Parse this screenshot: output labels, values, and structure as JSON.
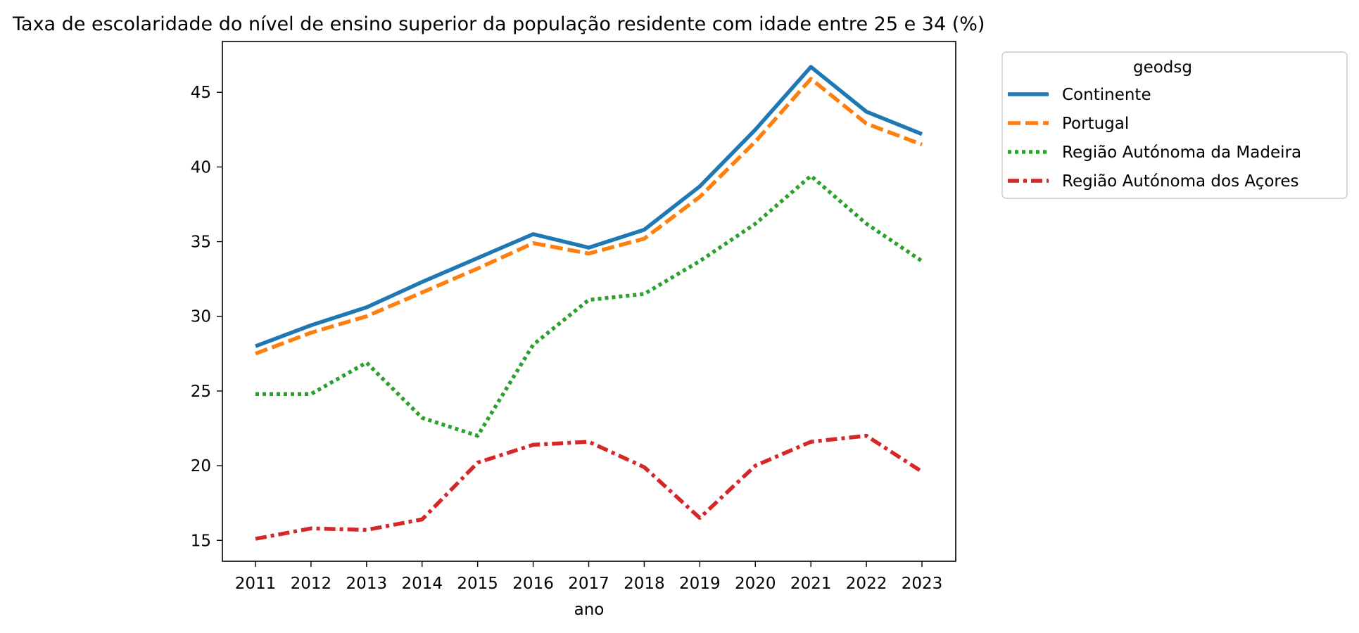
{
  "chart_data": {
    "type": "line",
    "title": "Taxa de escolaridade do nível de ensino superior da população residente com idade entre 25 e 34 (%)",
    "xlabel": "ano",
    "ylabel": "",
    "categories": [
      "2011",
      "2012",
      "2013",
      "2014",
      "2015",
      "2016",
      "2017",
      "2018",
      "2019",
      "2020",
      "2021",
      "2022",
      "2023"
    ],
    "ylim": [
      13.6,
      48.4
    ],
    "yticks": [
      15,
      20,
      25,
      30,
      35,
      40,
      45
    ],
    "grid": false,
    "legend": {
      "title": "geodsg",
      "placement": "outside top-right"
    },
    "series": [
      {
        "name": "Continente",
        "color": "#1f77b4",
        "dash": "solid",
        "values": [
          28.0,
          29.4,
          30.6,
          32.3,
          33.9,
          35.5,
          34.6,
          35.8,
          38.7,
          42.5,
          46.7,
          43.7,
          42.2
        ]
      },
      {
        "name": "Portugal",
        "color": "#ff7f0e",
        "dash": "dashed",
        "values": [
          27.5,
          28.9,
          30.0,
          31.6,
          33.2,
          34.9,
          34.2,
          35.2,
          38.0,
          41.7,
          45.9,
          42.9,
          41.5
        ]
      },
      {
        "name": "Região Autónoma da Madeira",
        "color": "#2ca02c",
        "dash": "dotted",
        "values": [
          24.8,
          24.8,
          26.9,
          23.2,
          22.0,
          28.1,
          31.1,
          31.5,
          33.7,
          36.2,
          39.4,
          36.2,
          33.7
        ]
      },
      {
        "name": "Região Autónoma dos Açores",
        "color": "#d62728",
        "dash": "dashdot",
        "values": [
          15.1,
          15.8,
          15.7,
          16.4,
          20.2,
          21.4,
          21.6,
          19.9,
          16.5,
          20.0,
          21.6,
          22.0,
          19.6
        ]
      }
    ]
  }
}
